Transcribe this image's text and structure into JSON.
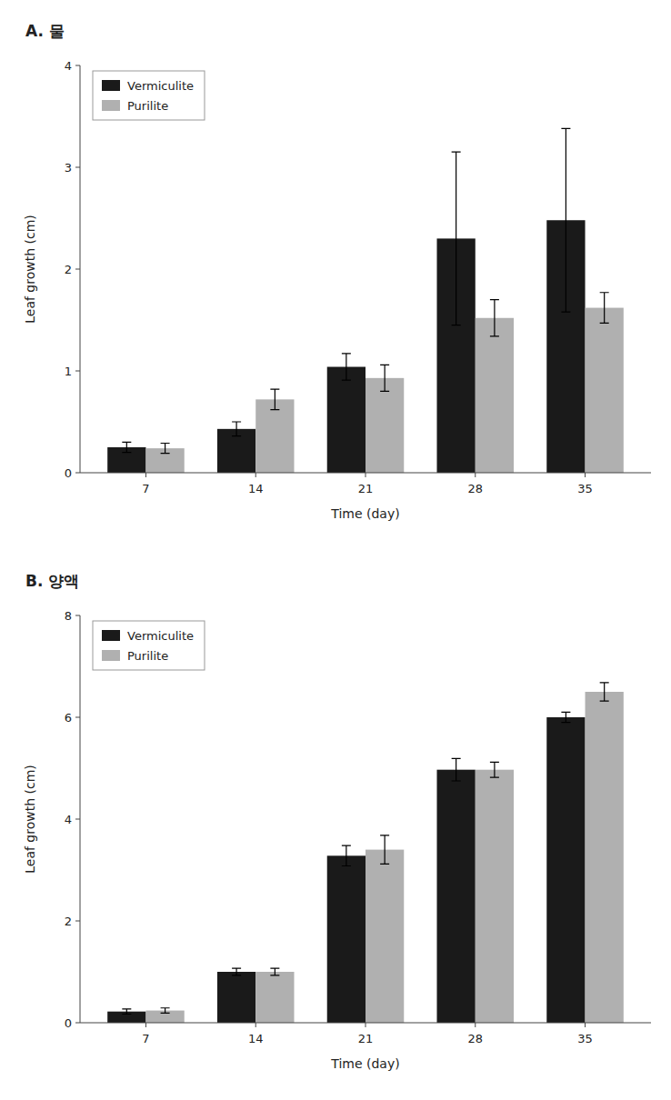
{
  "chart_data": [
    {
      "type": "bar",
      "title": "A. 물",
      "x_label": "Time (day)",
      "y_label": "Leaf growth (cm)",
      "categories": [
        "7",
        "14",
        "21",
        "28",
        "35"
      ],
      "series": [
        {
          "name": "Vermiculite",
          "color": "#1a1a1a",
          "values": [
            0.25,
            0.43,
            1.04,
            2.3,
            2.48
          ],
          "errors": [
            0.05,
            0.07,
            0.13,
            0.85,
            0.9
          ]
        },
        {
          "name": "Purilite",
          "color": "#b0b0b0",
          "values": [
            0.24,
            0.72,
            0.93,
            1.52,
            1.62
          ],
          "errors": [
            0.05,
            0.1,
            0.13,
            0.18,
            0.15
          ]
        }
      ],
      "ylim": [
        0,
        4
      ],
      "yticks": [
        0,
        1,
        2,
        3,
        4
      ],
      "grid": false,
      "legend": "upper-left"
    },
    {
      "type": "bar",
      "title": "B. 양액",
      "x_label": "Time (day)",
      "y_label": "Leaf growth (cm)",
      "categories": [
        "7",
        "14",
        "21",
        "28",
        "35"
      ],
      "series": [
        {
          "name": "Vermiculite",
          "color": "#1a1a1a",
          "values": [
            0.22,
            1.0,
            3.28,
            4.97,
            6.0
          ],
          "errors": [
            0.05,
            0.07,
            0.2,
            0.22,
            0.1
          ]
        },
        {
          "name": "Purilite",
          "color": "#b0b0b0",
          "values": [
            0.24,
            1.0,
            3.4,
            4.97,
            6.5
          ],
          "errors": [
            0.05,
            0.07,
            0.28,
            0.15,
            0.18
          ]
        }
      ],
      "ylim": [
        0,
        8
      ],
      "yticks": [
        0,
        2,
        4,
        6,
        8
      ],
      "grid": false,
      "legend": "upper-left"
    }
  ]
}
